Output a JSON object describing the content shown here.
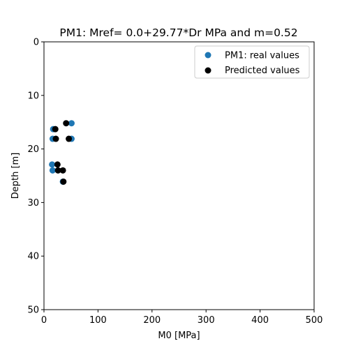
{
  "chart_data": {
    "type": "scatter",
    "title": "PM1: Mref= 0.0+29.77*Dr MPa and m=0.52",
    "xlabel": "M0 [MPa]",
    "ylabel": "Depth [m]",
    "xlim": [
      0,
      500
    ],
    "ylim": [
      50,
      0
    ],
    "y_inverted": true,
    "xticks": [
      0,
      100,
      200,
      300,
      400,
      500
    ],
    "yticks": [
      0,
      10,
      20,
      30,
      40,
      50
    ],
    "grid": false,
    "legend_position": "top-right",
    "series": [
      {
        "name": "PM1: real values",
        "color": "#1f77b4",
        "x": [
          51,
          17,
          16,
          51,
          15,
          16,
          35
        ],
        "y": [
          15.2,
          16.3,
          18.1,
          18.1,
          22.9,
          24.0,
          26.1
        ]
      },
      {
        "name": "Predicted values",
        "color": "#000000",
        "x": [
          41,
          21,
          22,
          46,
          25,
          26,
          35,
          36
        ],
        "y": [
          15.2,
          16.3,
          18.1,
          18.1,
          22.9,
          24.0,
          24.0,
          26.1
        ]
      }
    ]
  }
}
